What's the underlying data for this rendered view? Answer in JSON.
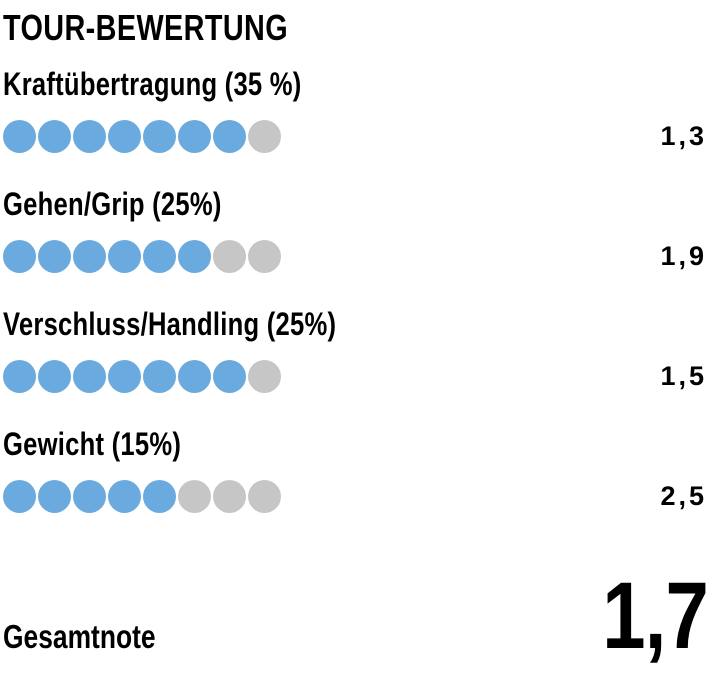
{
  "colors": {
    "dot_filled": "#6aaade",
    "dot_empty": "#c6c6c6",
    "text": "#000000",
    "background": "#ffffff"
  },
  "chart_data": {
    "type": "rating-dots",
    "title": "TOUR-BEWERTUNG",
    "max_dots_per_row": 8,
    "legend": {
      "filled_dot": "filled rating dot (blue)",
      "empty_dot": "empty rating dot (gray)"
    },
    "rows": [
      {
        "label": "Kraftübertragung (35 %)",
        "filled_dots": 7,
        "value": "1,3"
      },
      {
        "label": "Gehen/Grip (25%)",
        "filled_dots": 6,
        "value": "1,9"
      },
      {
        "label": "Verschluss/Handling (25%)",
        "filled_dots": 7,
        "value": "1,5"
      },
      {
        "label": "Gewicht (15%)",
        "filled_dots": 5,
        "value": "2,5"
      }
    ],
    "total": {
      "label": "Gesamtnote",
      "value": "1,7"
    }
  }
}
